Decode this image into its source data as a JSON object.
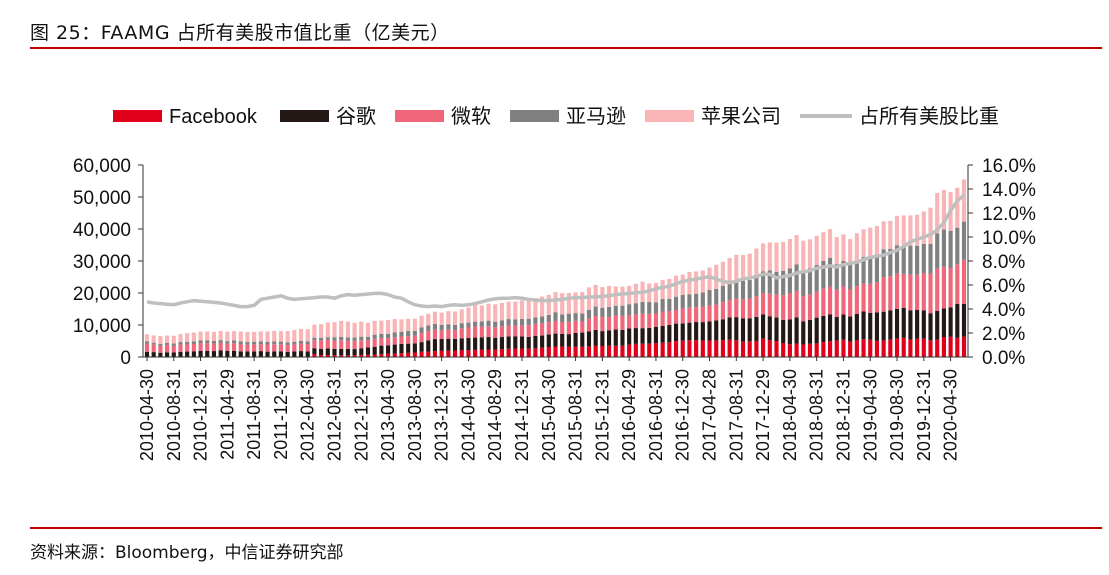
{
  "title": "图 25：FAAMG 占所有美股市值比重（亿美元）",
  "source": "资料来源：Bloomberg，中信证券研究部",
  "colors": {
    "rule": "#c00000",
    "Facebook": "#e0001a",
    "谷歌": "#231815",
    "微软": "#f0677a",
    "亚马逊": "#808080",
    "苹果公司": "#f9b4b6",
    "占所有美股比重": "#bfbfbf"
  },
  "chart_data": {
    "type": "bar",
    "stacked": true,
    "legend_position": "top",
    "grid": false,
    "y_left": {
      "ticks": [
        "0",
        "10,000",
        "20,000",
        "30,000",
        "40,000",
        "50,000",
        "60,000"
      ],
      "ylim": [
        0,
        60000
      ]
    },
    "y_right": {
      "ticks": [
        "0.0%",
        "2.0%",
        "4.0%",
        "6.0%",
        "8.0%",
        "10.0%",
        "12.0%",
        "14.0%",
        "16.0%"
      ],
      "ylim": [
        0,
        16
      ]
    },
    "x_tick_labels": [
      "2010-04-30",
      "2010-08-31",
      "2010-12-31",
      "2011-04-29",
      "2011-08-31",
      "2011-12-30",
      "2012-04-30",
      "2012-08-31",
      "2012-12-31",
      "2013-04-30",
      "2013-08-30",
      "2013-12-31",
      "2014-04-30",
      "2014-08-29",
      "2014-12-31",
      "2015-04-30",
      "2015-08-31",
      "2015-12-31",
      "2016-04-29",
      "2016-08-31",
      "2016-12-30",
      "2017-04-28",
      "2017-08-31",
      "2017-12-29",
      "2018-04-30",
      "2018-08-31",
      "2018-12-31",
      "2019-04-30",
      "2019-08-30",
      "2019-12-31",
      "2020-04-30"
    ],
    "bar_months": 123,
    "series": [
      {
        "name": "Facebook",
        "kind": "bar",
        "values": [
          0,
          0,
          0,
          0,
          0,
          0,
          0,
          0,
          0,
          0,
          0,
          0,
          0,
          0,
          0,
          0,
          0,
          0,
          0,
          0,
          0,
          0,
          0,
          0,
          0,
          920,
          640,
          620,
          520,
          560,
          500,
          560,
          640,
          740,
          770,
          900,
          1030,
          1050,
          1180,
          1300,
          1420,
          1650,
          1700,
          1830,
          1910,
          1970,
          2030,
          2080,
          2150,
          2220,
          2300,
          2330,
          2360,
          2450,
          2580,
          2660,
          2650,
          2620,
          2700,
          2920,
          3120,
          3280,
          3300,
          3250,
          3180,
          3260,
          3310,
          3600,
          3440,
          3530,
          3520,
          3540,
          3860,
          4110,
          4150,
          4130,
          4350,
          4500,
          4650,
          4950,
          5100,
          5220,
          5240,
          5130,
          5170,
          5200,
          5240,
          5420,
          5270,
          4800,
          4900,
          5010,
          5800,
          5300,
          5000,
          4380,
          3980,
          4200,
          3900,
          4130,
          4250,
          4680,
          4970,
          5100,
          5400,
          4870,
          5200,
          5530,
          5400,
          5050,
          5200,
          5500,
          5800,
          6000,
          5500,
          5680,
          5800,
          5200,
          5400,
          6250,
          6300,
          6000,
          6330
        ]
      },
      {
        "name": "谷歌",
        "kind": "bar",
        "values": [
          1630,
          1530,
          1340,
          1480,
          1420,
          1600,
          1700,
          1720,
          1880,
          1880,
          1850,
          2040,
          1950,
          1950,
          1740,
          1740,
          1710,
          1840,
          1680,
          1760,
          1770,
          1630,
          1740,
          1850,
          1750,
          1840,
          1860,
          2030,
          2050,
          2000,
          2010,
          1920,
          2110,
          2240,
          2440,
          2660,
          2630,
          2830,
          2940,
          2860,
          2840,
          3000,
          3500,
          3770,
          3730,
          3740,
          3640,
          3780,
          3780,
          3850,
          3850,
          3900,
          3650,
          3780,
          3860,
          3750,
          3750,
          3650,
          3900,
          3780,
          3900,
          4040,
          3950,
          3890,
          4330,
          4370,
          4670,
          4860,
          4650,
          4820,
          5060,
          4930,
          5050,
          4930,
          4860,
          4970,
          5100,
          5200,
          5380,
          5490,
          5430,
          5520,
          5680,
          5770,
          5940,
          6200,
          6540,
          6940,
          7190,
          7230,
          7220,
          7550,
          7550,
          7440,
          7370,
          7220,
          7800,
          8150,
          7200,
          7450,
          8050,
          8150,
          8390,
          7450,
          7900,
          7830,
          8290,
          8700,
          8400,
          8900,
          8960,
          9080,
          9250,
          9380,
          9050,
          9000,
          8750,
          8480,
          9050,
          8900,
          9250,
          10600,
          10230
        ]
      },
      {
        "name": "微软",
        "kind": "bar",
        "values": [
          2550,
          2300,
          2170,
          2300,
          2050,
          2250,
          2230,
          2350,
          2480,
          2450,
          2320,
          2350,
          2180,
          2320,
          2300,
          2100,
          2240,
          2170,
          2230,
          2230,
          2210,
          2090,
          2200,
          2350,
          2310,
          2460,
          2700,
          2700,
          2600,
          2700,
          2530,
          2600,
          2500,
          2260,
          2480,
          2350,
          2250,
          2320,
          2280,
          2310,
          2410,
          2800,
          2850,
          2950,
          2700,
          2800,
          2730,
          3100,
          3290,
          3450,
          3360,
          3390,
          3250,
          3360,
          3410,
          3390,
          3480,
          3650,
          3780,
          3820,
          3830,
          3950,
          3670,
          3860,
          3800,
          3450,
          3990,
          4350,
          4360,
          4110,
          4400,
          4480,
          4100,
          4280,
          4500,
          4370,
          4150,
          4520,
          4320,
          4250,
          4660,
          4630,
          4640,
          4840,
          4950,
          5050,
          5350,
          5410,
          5810,
          5990,
          6080,
          6450,
          6520,
          7050,
          7200,
          7680,
          8050,
          8300,
          7900,
          8000,
          8100,
          8530,
          8600,
          8450,
          8750,
          8400,
          8630,
          8680,
          9090,
          9450,
          10800,
          10630,
          11100,
          10620,
          11250,
          11000,
          11700,
          12400,
          13100,
          13050,
          12250,
          12400,
          13800
        ]
      },
      {
        "name": "亚马逊",
        "kind": "bar",
        "values": [
          680,
          650,
          590,
          620,
          730,
          810,
          810,
          850,
          810,
          830,
          830,
          870,
          820,
          920,
          880,
          830,
          830,
          870,
          850,
          850,
          830,
          820,
          840,
          840,
          830,
          830,
          830,
          840,
          1000,
          1050,
          1040,
          1000,
          1100,
          1080,
          1280,
          1340,
          1340,
          1450,
          1500,
          1640,
          1510,
          1840,
          1840,
          1810,
          1710,
          1720,
          1650,
          1600,
          1540,
          1530,
          1620,
          1750,
          1770,
          1890,
          2000,
          2000,
          2010,
          2040,
          2000,
          2160,
          2300,
          2730,
          2390,
          2540,
          2410,
          2500,
          2800,
          2960,
          2940,
          3240,
          3030,
          3100,
          3500,
          3500,
          3690,
          3700,
          3500,
          3930,
          3800,
          4160,
          4190,
          4260,
          4210,
          4400,
          4860,
          4860,
          5120,
          5240,
          5490,
          5780,
          5900,
          6200,
          6920,
          7300,
          7050,
          7600,
          7840,
          8300,
          8000,
          8080,
          8350,
          8650,
          9060,
          8000,
          7990,
          7720,
          7970,
          8320,
          8700,
          8700,
          8690,
          8550,
          8800,
          8900,
          9000,
          9100,
          9120,
          9300,
          11100,
          11700,
          11600,
          11400,
          11950
        ]
      },
      {
        "name": "苹果公司",
        "kind": "bar",
        "values": [
          2250,
          2260,
          2470,
          2320,
          2450,
          2500,
          2720,
          2730,
          2810,
          2840,
          2830,
          2870,
          2950,
          2880,
          3060,
          3160,
          3090,
          3110,
          3260,
          3320,
          3280,
          3560,
          3670,
          3730,
          3780,
          4060,
          4260,
          4590,
          4720,
          4990,
          5040,
          4600,
          4700,
          4390,
          4320,
          4120,
          4280,
          4210,
          3860,
          3850,
          3770,
          3600,
          3610,
          3790,
          3800,
          4090,
          4190,
          4320,
          4710,
          5160,
          4980,
          5310,
          5440,
          5410,
          5460,
          5550,
          5820,
          5820,
          5970,
          6200,
          6280,
          6300,
          6630,
          6460,
          6460,
          6720,
          6990,
          6770,
          6440,
          6520,
          6020,
          5920,
          5740,
          6070,
          6330,
          5800,
          6050,
          5950,
          6250,
          6560,
          6380,
          6920,
          6970,
          6900,
          7050,
          7510,
          7520,
          7900,
          8190,
          8090,
          8200,
          8680,
          8720,
          8710,
          9130,
          9060,
          9190,
          9160,
          9330,
          9100,
          9150,
          9000,
          8930,
          8460,
          8280,
          8030,
          8550,
          8700,
          8820,
          8840,
          8730,
          8790,
          9160,
          9330,
          9440,
          9700,
          10120,
          11300,
          12600,
          12270,
          12180,
          12480,
          13190
        ]
      },
      {
        "name": "占所有美股比重",
        "kind": "line",
        "axis": "right",
        "values": [
          4.6,
          4.5,
          4.45,
          4.4,
          4.35,
          4.5,
          4.6,
          4.7,
          4.65,
          4.6,
          4.55,
          4.5,
          4.4,
          4.3,
          4.2,
          4.2,
          4.3,
          4.8,
          4.9,
          5.0,
          5.1,
          4.9,
          4.8,
          4.85,
          4.9,
          4.95,
          5.0,
          5.0,
          4.9,
          5.1,
          5.2,
          5.15,
          5.2,
          5.25,
          5.3,
          5.3,
          5.2,
          5.0,
          4.9,
          4.6,
          4.35,
          4.25,
          4.2,
          4.25,
          4.2,
          4.3,
          4.35,
          4.3,
          4.35,
          4.45,
          4.6,
          4.75,
          4.85,
          4.9,
          4.9,
          4.95,
          4.9,
          4.8,
          4.75,
          4.7,
          4.7,
          4.75,
          4.8,
          4.9,
          4.95,
          4.95,
          5.0,
          5.0,
          5.05,
          5.1,
          5.2,
          5.25,
          5.3,
          5.35,
          5.4,
          5.5,
          5.7,
          5.8,
          5.9,
          6.1,
          6.3,
          6.4,
          6.5,
          6.6,
          6.7,
          6.5,
          6.3,
          6.2,
          6.3,
          6.5,
          6.6,
          6.7,
          6.9,
          6.9,
          6.6,
          6.7,
          6.8,
          7.0,
          7.1,
          7.2,
          7.4,
          7.5,
          7.6,
          7.5,
          7.7,
          7.8,
          7.9,
          8.1,
          8.3,
          8.4,
          8.5,
          8.7,
          8.9,
          9.2,
          9.6,
          9.8,
          10.0,
          10.2,
          10.6,
          11.2,
          12.2,
          13.0,
          13.5
        ]
      }
    ]
  }
}
